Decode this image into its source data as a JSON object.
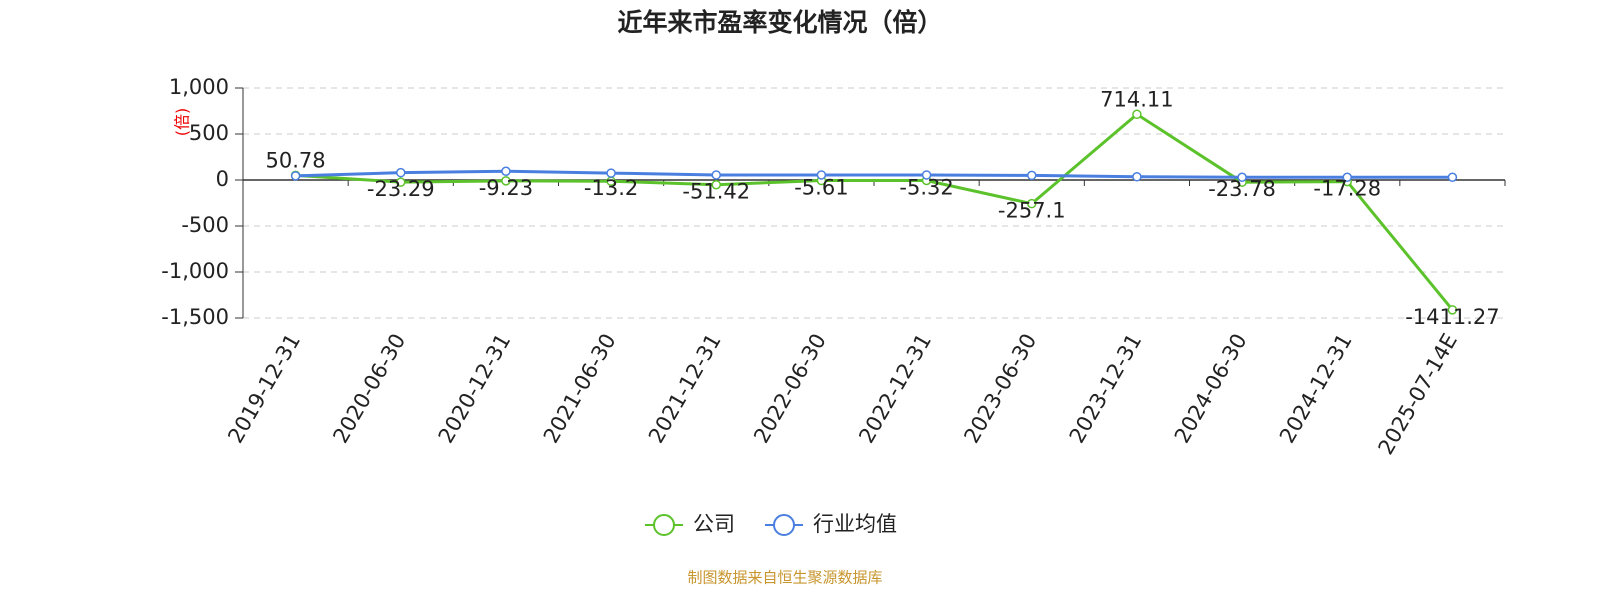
{
  "chart_data": {
    "type": "line",
    "title": "近年来市盈率变化情况（倍）",
    "y_unit": "(倍)",
    "source": "制图数据来自恒生聚源数据库",
    "categories": [
      "2019-12-31",
      "2020-06-30",
      "2020-12-31",
      "2021-06-30",
      "2021-12-31",
      "2022-06-30",
      "2022-12-31",
      "2023-06-30",
      "2023-12-31",
      "2024-06-30",
      "2024-12-31",
      "2025-07-14E"
    ],
    "series": [
      {
        "name": "公司",
        "color": "#5cc22b",
        "values": [
          50.78,
          -23.29,
          -9.23,
          -13.2,
          -51.42,
          -5.61,
          -5.32,
          -257.1,
          714.11,
          -23.78,
          -17.28,
          -1411.27
        ]
      },
      {
        "name": "行业均值",
        "color": "#4a7fe0",
        "values": [
          45,
          80,
          95,
          75,
          55,
          55,
          55,
          50,
          35,
          30,
          30,
          30
        ]
      }
    ],
    "ylim": [
      -1500,
      1000
    ],
    "yticks": [
      {
        "value": 1000,
        "label": "1,000"
      },
      500,
      0,
      -500,
      {
        "value": -1000,
        "label": "-1,000"
      },
      {
        "value": -1500,
        "label": "-1,500"
      }
    ],
    "grid": true
  }
}
